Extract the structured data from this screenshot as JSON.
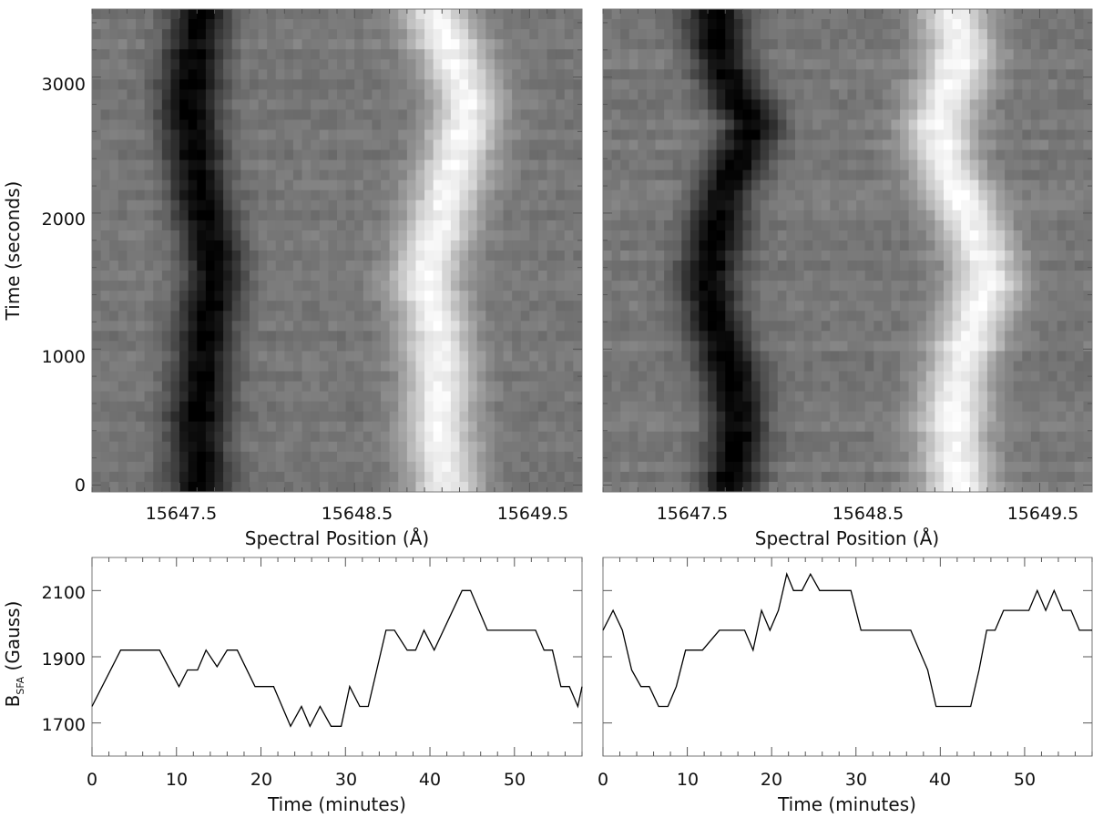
{
  "chart_data": [
    {
      "type": "heatmap",
      "panel": "top-left",
      "title": "",
      "xlabel": "Spectral Position (Å)",
      "ylabel": "Time (seconds)",
      "xlim": [
        15647.0,
        15649.8
      ],
      "ylim": [
        -50,
        3500
      ],
      "x_ticks": [
        "15647.5",
        "15648.5",
        "15649.5"
      ],
      "y_ticks": [
        "0",
        "1000",
        "2000",
        "3000"
      ],
      "dark_line_center_by_time": [
        [
          0,
          15647.62
        ],
        [
          400,
          15647.6
        ],
        [
          800,
          15647.63
        ],
        [
          1200,
          15647.65
        ],
        [
          1500,
          15647.7
        ],
        [
          1800,
          15647.68
        ],
        [
          2100,
          15647.62
        ],
        [
          2500,
          15647.58
        ],
        [
          2800,
          15647.55
        ],
        [
          3100,
          15647.58
        ],
        [
          3500,
          15647.62
        ]
      ],
      "bright_line_center_by_time": [
        [
          0,
          15649.02
        ],
        [
          400,
          15648.98
        ],
        [
          800,
          15648.99
        ],
        [
          1200,
          15648.96
        ],
        [
          1500,
          15648.9
        ],
        [
          1800,
          15648.96
        ],
        [
          2100,
          15649.02
        ],
        [
          2500,
          15649.1
        ],
        [
          2800,
          15649.15
        ],
        [
          3100,
          15649.08
        ],
        [
          3500,
          15648.95
        ]
      ]
    },
    {
      "type": "heatmap",
      "panel": "top-right",
      "title": "",
      "xlabel": "Spectral Position (Å)",
      "ylabel": "",
      "xlim": [
        15647.0,
        15649.8
      ],
      "ylim": [
        -50,
        3500
      ],
      "x_ticks": [
        "15647.5",
        "15648.5",
        "15649.5"
      ],
      "y_ticks": [],
      "dark_line_center_by_time": [
        [
          0,
          15647.72
        ],
        [
          400,
          15647.78
        ],
        [
          800,
          15647.74
        ],
        [
          1200,
          15647.64
        ],
        [
          1500,
          15647.6
        ],
        [
          1800,
          15647.64
        ],
        [
          2100,
          15647.68
        ],
        [
          2400,
          15647.78
        ],
        [
          2650,
          15647.86
        ],
        [
          2900,
          15647.74
        ],
        [
          3200,
          15647.66
        ],
        [
          3500,
          15647.64
        ]
      ],
      "bright_line_center_by_time": [
        [
          0,
          15649.04
        ],
        [
          400,
          15649.0
        ],
        [
          800,
          15649.03
        ],
        [
          1200,
          15649.12
        ],
        [
          1500,
          15649.2
        ],
        [
          1800,
          15649.14
        ],
        [
          2100,
          15649.05
        ],
        [
          2400,
          15648.95
        ],
        [
          2650,
          15648.92
        ],
        [
          2900,
          15648.98
        ],
        [
          3200,
          15649.05
        ],
        [
          3500,
          15649.0
        ]
      ]
    },
    {
      "type": "line",
      "panel": "bottom-left",
      "title": "",
      "xlabel": "Time (minutes)",
      "ylabel": "B",
      "ylabel_sub": "SFA",
      "ylabel_suffix": " (Gauss)",
      "xlim": [
        0,
        58
      ],
      "ylim": [
        1600,
        2200
      ],
      "x_ticks": [
        "0",
        "10",
        "20",
        "30",
        "40",
        "50"
      ],
      "y_ticks": [
        "1700",
        "1900",
        "2100"
      ],
      "series": [
        {
          "x": [
            0,
            3.4,
            8,
            10.3,
            11.3,
            12.5,
            13.5,
            14.8,
            16,
            17.2,
            19.3,
            21.5,
            23.5,
            24.8,
            25.8,
            27,
            28.3,
            29.5,
            30.5,
            31.7,
            32.7,
            34.8,
            35.8,
            37.3,
            38.3,
            39.3,
            40.5,
            43.8,
            44.8,
            46.8,
            52.5,
            53.5,
            54.5,
            55.5,
            56.5,
            57.5,
            58
          ],
          "y": [
            1750,
            1920,
            1920,
            1810,
            1860,
            1860,
            1920,
            1870,
            1920,
            1920,
            1810,
            1810,
            1690,
            1750,
            1690,
            1750,
            1690,
            1690,
            1810,
            1750,
            1750,
            1980,
            1980,
            1920,
            1920,
            1980,
            1920,
            2100,
            2100,
            1980,
            1980,
            1920,
            1920,
            1810,
            1810,
            1750,
            1810
          ]
        }
      ]
    },
    {
      "type": "line",
      "panel": "bottom-right",
      "title": "",
      "xlabel": "Time (minutes)",
      "ylabel": "",
      "xlim": [
        0,
        58
      ],
      "ylim": [
        1600,
        2200
      ],
      "x_ticks": [
        "0",
        "10",
        "20",
        "30",
        "40",
        "50"
      ],
      "y_ticks": [],
      "series": [
        {
          "x": [
            0,
            1.2,
            2.3,
            3.4,
            4.5,
            5.5,
            6.6,
            7.7,
            8.7,
            9.8,
            11.8,
            13.8,
            14.8,
            16.8,
            17.8,
            18.8,
            19.8,
            20.8,
            21.8,
            22.6,
            23.6,
            24.6,
            25.7,
            26.7,
            27.7,
            29.4,
            30.6,
            36.5,
            37.5,
            38.5,
            39.5,
            43.6,
            44.6,
            45.5,
            46.5,
            47.5,
            48.5,
            50.5,
            51.5,
            52.5,
            53.5,
            54.5,
            55.5,
            56.5,
            57.5,
            58
          ],
          "y": [
            1980,
            2040,
            1980,
            1860,
            1810,
            1810,
            1750,
            1750,
            1810,
            1920,
            1920,
            1980,
            1980,
            1980,
            1920,
            2040,
            1980,
            2040,
            2150,
            2100,
            2100,
            2150,
            2100,
            2100,
            2100,
            2100,
            1980,
            1980,
            1920,
            1860,
            1750,
            1750,
            1860,
            1980,
            1980,
            2040,
            2040,
            2040,
            2100,
            2040,
            2100,
            2040,
            2040,
            1980,
            1980,
            1980
          ]
        }
      ]
    }
  ]
}
